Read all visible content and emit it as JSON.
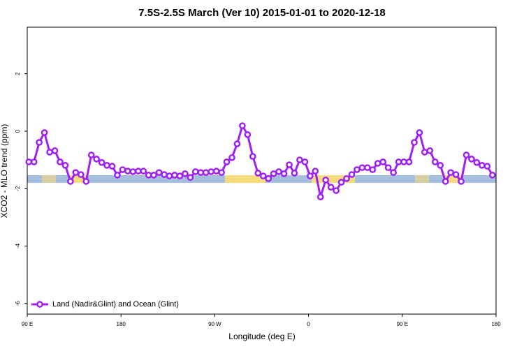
{
  "chart_data": {
    "type": "line",
    "title": "7.5S-2.5S March (Ver 10)   2015-01-01 to 2020-12-18",
    "x_label": "Longitude (deg E)",
    "y_label": "XCO2 - MLO trend (ppm)",
    "legend": "bottomleft",
    "xlim": [
      90,
      540
    ],
    "ylim": [
      -6.37,
      3.62
    ],
    "xticks": [
      {
        "value": 90,
        "label": "90 E"
      },
      180,
      {
        "value": 270,
        "label": "90 W"
      },
      {
        "value": 360,
        "label": "0"
      },
      {
        "value": 450,
        "label": "90 E"
      },
      {
        "value": 540,
        "label": "180"
      }
    ],
    "yticks": [
      2,
      0,
      -2,
      -4,
      -6
    ],
    "x": [
      91.5,
      96.5,
      101.5,
      106.5,
      111.5,
      116.5,
      121.5,
      126.5,
      131.5,
      136.5,
      141.5,
      146.5,
      151.5,
      156.5,
      161.5,
      166.5,
      171.5,
      176.5,
      181.5,
      186.5,
      191.5,
      196.5,
      201.5,
      206.5,
      211.5,
      216.5,
      221.5,
      226.5,
      231.5,
      236.5,
      241.5,
      246.5,
      251.5,
      256.5,
      261.5,
      266.5,
      271.5,
      276.5,
      281.5,
      286.5,
      291.5,
      296.5,
      301.5,
      306.5,
      311.5,
      316.5,
      321.5,
      326.5,
      331.5,
      336.5,
      341.5,
      346.5,
      351.5,
      356.5,
      361.5,
      366.5,
      371.5,
      376.5,
      381.5,
      386.5,
      391.5,
      396.5,
      401.5,
      406.5,
      411.5,
      416.5,
      421.5,
      426.5,
      431.5,
      436.5,
      441.5,
      446.5,
      451.5,
      456.5,
      461.5,
      466.5,
      471.5,
      476.5,
      481.5,
      486.5,
      491.5,
      496.5,
      501.5,
      506.5,
      511.5,
      516.5,
      521.5,
      526.5,
      531.5,
      536.5
    ],
    "series": [
      {
        "name": "Land (Nadir&Glint) and Ocean (Glint)",
        "color": "#a020f0",
        "values": [
          -1.07,
          -1.07,
          -0.39,
          -0.05,
          -0.73,
          -0.68,
          -1.07,
          -1.19,
          -1.75,
          -1.44,
          -1.51,
          -1.75,
          -0.83,
          -0.97,
          -1.09,
          -1.19,
          -1.22,
          -1.53,
          -1.34,
          -1.39,
          -1.41,
          -1.39,
          -1.39,
          -1.53,
          -1.53,
          -1.44,
          -1.51,
          -1.56,
          -1.53,
          -1.56,
          -1.48,
          -1.61,
          -1.41,
          -1.44,
          -1.44,
          -1.41,
          -1.39,
          -1.44,
          -1.07,
          -0.92,
          -0.44,
          0.19,
          -0.12,
          -0.88,
          -1.46,
          -1.56,
          -1.65,
          -1.48,
          -1.41,
          -1.48,
          -1.17,
          -1.46,
          -1.0,
          -1.07,
          -1.56,
          -1.39,
          -2.29,
          -1.7,
          -1.95,
          -2.07,
          -1.78,
          -1.65,
          -1.51,
          -1.34,
          -1.27,
          -1.27,
          -1.34,
          -1.12,
          -1.07,
          -1.27,
          -1.44,
          -1.07,
          -1.07,
          -1.07,
          -0.39,
          -0.05,
          -0.73,
          -0.68,
          -1.07,
          -1.19,
          -1.75,
          -1.44,
          -1.51,
          -1.75,
          -0.83,
          -0.97,
          -1.09,
          -1.19,
          -1.22,
          -1.53
        ]
      }
    ]
  }
}
